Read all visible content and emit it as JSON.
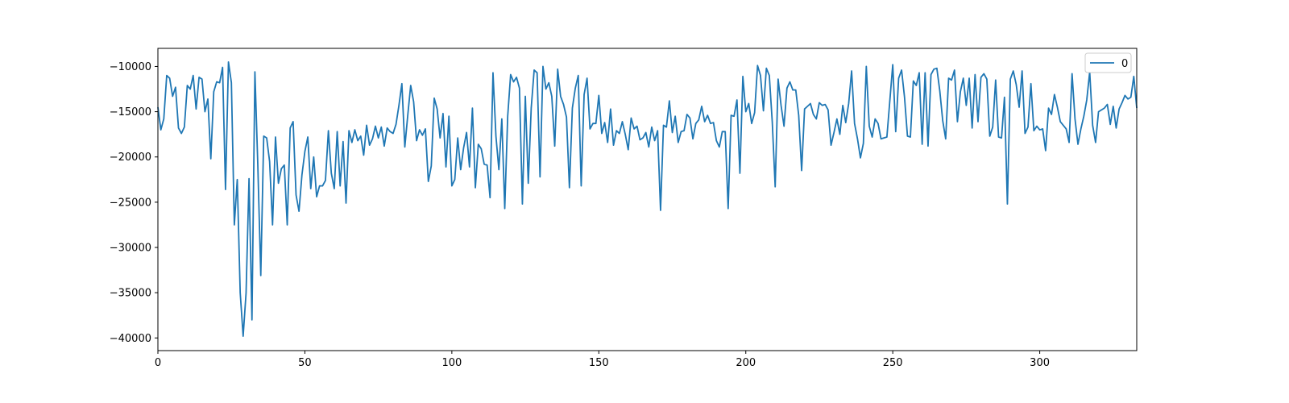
{
  "chart_data": {
    "type": "line",
    "title": "",
    "xlabel": "",
    "ylabel": "",
    "xlim": [
      0,
      333
    ],
    "ylim": [
      -41400,
      -8000
    ],
    "grid": false,
    "legend_placement": "top-right",
    "x_ticks": [
      0,
      50,
      100,
      150,
      200,
      250,
      300
    ],
    "y_ticks": [
      -40000,
      -35000,
      -30000,
      -25000,
      -20000,
      -15000,
      -10000
    ],
    "x_tick_labels": [
      "0",
      "50",
      "100",
      "150",
      "200",
      "250",
      "300"
    ],
    "y_tick_labels": [
      "−40000",
      "−35000",
      "−30000",
      "−25000",
      "−20000",
      "−15000",
      "−10000"
    ],
    "series": [
      {
        "name": "0",
        "color": "#1f77b4",
        "values": [
          -14500,
          -17000,
          -15800,
          -11000,
          -11300,
          -13300,
          -12300,
          -16800,
          -17400,
          -16700,
          -12100,
          -12500,
          -11000,
          -14700,
          -11200,
          -11400,
          -15000,
          -13600,
          -20200,
          -12800,
          -11700,
          -11800,
          -10100,
          -23600,
          -9500,
          -11800,
          -27500,
          -22500,
          -35000,
          -39800,
          -35000,
          -22400,
          -38000,
          -10600,
          -21000,
          -33100,
          -17700,
          -17900,
          -20500,
          -27500,
          -17800,
          -22900,
          -21300,
          -20900,
          -27500,
          -16800,
          -16100,
          -24200,
          -26000,
          -22000,
          -19400,
          -17800,
          -23500,
          -20000,
          -24400,
          -23200,
          -23200,
          -22600,
          -17100,
          -21800,
          -23500,
          -17200,
          -23200,
          -18300,
          -25100,
          -17100,
          -18400,
          -17000,
          -18200,
          -17700,
          -19800,
          -16500,
          -18700,
          -18000,
          -16600,
          -17900,
          -16700,
          -18800,
          -16800,
          -17200,
          -17400,
          -16400,
          -14300,
          -11900,
          -18900,
          -15400,
          -12100,
          -13900,
          -18200,
          -17000,
          -17600,
          -16900,
          -22700,
          -21000,
          -13500,
          -14700,
          -17900,
          -15200,
          -21100,
          -15500,
          -23200,
          -22500,
          -17900,
          -21400,
          -19000,
          -17300,
          -21100,
          -14600,
          -23400,
          -18600,
          -19100,
          -20800,
          -20900,
          -24500,
          -10700,
          -17700,
          -21400,
          -15800,
          -25700,
          -15500,
          -10900,
          -11700,
          -11200,
          -12400,
          -25200,
          -13300,
          -22900,
          -14600,
          -10400,
          -10700,
          -22200,
          -10000,
          -12500,
          -11800,
          -13300,
          -18800,
          -10300,
          -13300,
          -14200,
          -15600,
          -23400,
          -14600,
          -12400,
          -11000,
          -23200,
          -13100,
          -11300,
          -16900,
          -16300,
          -16300,
          -13200,
          -17400,
          -16200,
          -18400,
          -14700,
          -18700,
          -17100,
          -17400,
          -16100,
          -17500,
          -19200,
          -15700,
          -16900,
          -16600,
          -18100,
          -17900,
          -17300,
          -18900,
          -16700,
          -18200,
          -17100,
          -25900,
          -16500,
          -16700,
          -13800,
          -17300,
          -15500,
          -18400,
          -17200,
          -17100,
          -15300,
          -15700,
          -18000,
          -16300,
          -15900,
          -14400,
          -16100,
          -15400,
          -16300,
          -16200,
          -18200,
          -18900,
          -17200,
          -17200,
          -25700,
          -15400,
          -15500,
          -13700,
          -21800,
          -11100,
          -15000,
          -14100,
          -16300,
          -15100,
          -9900,
          -11000,
          -14900,
          -10200,
          -11000,
          -16100,
          -23300,
          -11400,
          -14300,
          -16600,
          -12400,
          -11700,
          -12600,
          -12600,
          -15400,
          -21500,
          -14700,
          -14400,
          -14100,
          -15300,
          -15800,
          -14000,
          -14300,
          -14200,
          -14800,
          -18700,
          -17300,
          -15800,
          -17500,
          -14300,
          -16200,
          -14100,
          -10500,
          -16300,
          -18000,
          -20100,
          -18500,
          -10000,
          -16600,
          -17800,
          -15800,
          -16300,
          -18000,
          -17900,
          -17800,
          -13800,
          -9800,
          -17200,
          -11300,
          -10400,
          -13400,
          -17700,
          -17800,
          -11600,
          -12100,
          -10700,
          -18600,
          -10700,
          -18800,
          -10900,
          -10300,
          -10200,
          -12700,
          -16000,
          -18000,
          -11300,
          -11500,
          -10400,
          -16100,
          -12800,
          -11300,
          -14300,
          -11300,
          -16800,
          -10900,
          -16100,
          -11200,
          -10800,
          -11400,
          -17700,
          -16700,
          -11500,
          -17800,
          -17900,
          -13400,
          -25200,
          -11400,
          -10500,
          -12000,
          -14500,
          -10500,
          -17400,
          -16700,
          -11900,
          -17100,
          -16600,
          -17000,
          -16900,
          -19300,
          -14600,
          -15300,
          -13100,
          -14500,
          -16100,
          -16500,
          -16900,
          -18400,
          -10800,
          -15800,
          -18600,
          -16900,
          -15500,
          -13700,
          -10600,
          -16500,
          -18400,
          -15000,
          -14800,
          -14600,
          -14200,
          -16400,
          -14400,
          -16800,
          -14700,
          -14000,
          -13200,
          -13600,
          -13400,
          -11100,
          -14600
        ]
      }
    ]
  }
}
